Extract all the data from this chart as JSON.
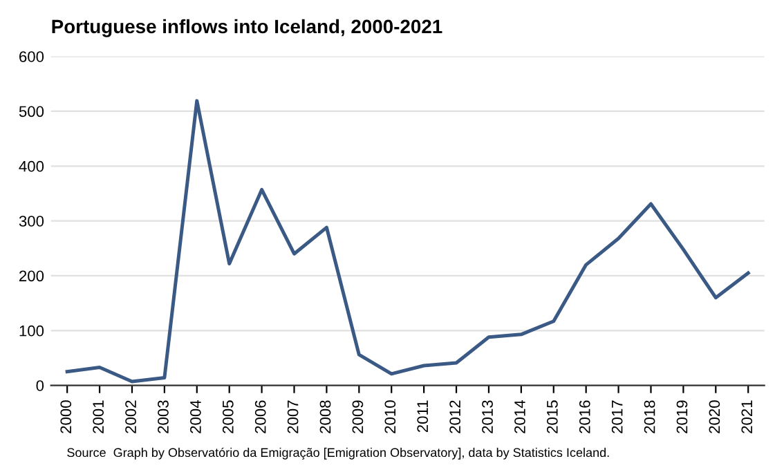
{
  "chart_data": {
    "type": "line",
    "title": "Portuguese inflows into Iceland, 2000-2021",
    "categories": [
      "2000",
      "2001",
      "2002",
      "2003",
      "2004",
      "2005",
      "2006",
      "2007",
      "2008",
      "2009",
      "2010",
      "2011",
      "2012",
      "2013",
      "2014",
      "2015",
      "2016",
      "2017",
      "2018",
      "2019",
      "2020",
      "2021"
    ],
    "series": [
      {
        "color": "#3a5a85",
        "values": [
          25,
          33,
          7,
          14,
          519,
          222,
          357,
          240,
          288,
          56,
          21,
          36,
          41,
          88,
          93,
          117,
          220,
          268,
          331,
          248,
          160,
          205
        ]
      }
    ],
    "ylim": [
      0,
      600
    ],
    "yticks": [
      0,
      100,
      200,
      300,
      400,
      500,
      600
    ],
    "grid": "y",
    "marker": "none",
    "line_style": "solid",
    "legend": false,
    "annotations": [
      "Source  Graph by Observatório da Emigração [Emigration Observatory], data by Statistics Iceland."
    ]
  }
}
